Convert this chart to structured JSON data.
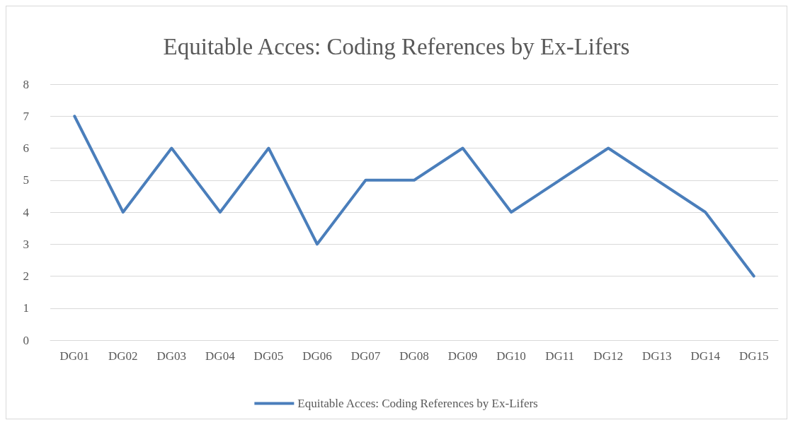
{
  "chart_data": {
    "type": "line",
    "title": "Equitable Acces: Coding References by Ex-Lifers",
    "categories": [
      "DG01",
      "DG02",
      "DG03",
      "DG04",
      "DG05",
      "DG06",
      "DG07",
      "DG08",
      "DG09",
      "DG10",
      "DG11",
      "DG12",
      "DG13",
      "DG14",
      "DG15"
    ],
    "series": [
      {
        "name": "Equitable Acces: Coding References by Ex-Lifers",
        "color": "#4a7ebb",
        "values": [
          7,
          4,
          6,
          4,
          6,
          3,
          5,
          5,
          6,
          4,
          5,
          6,
          5,
          4,
          2
        ]
      }
    ],
    "ylim": [
      0,
      8
    ],
    "yticks": [
      0,
      1,
      2,
      3,
      4,
      5,
      6,
      7,
      8
    ],
    "grid": "y",
    "legend": "bottom",
    "marker": "none",
    "line_style": "solid"
  }
}
